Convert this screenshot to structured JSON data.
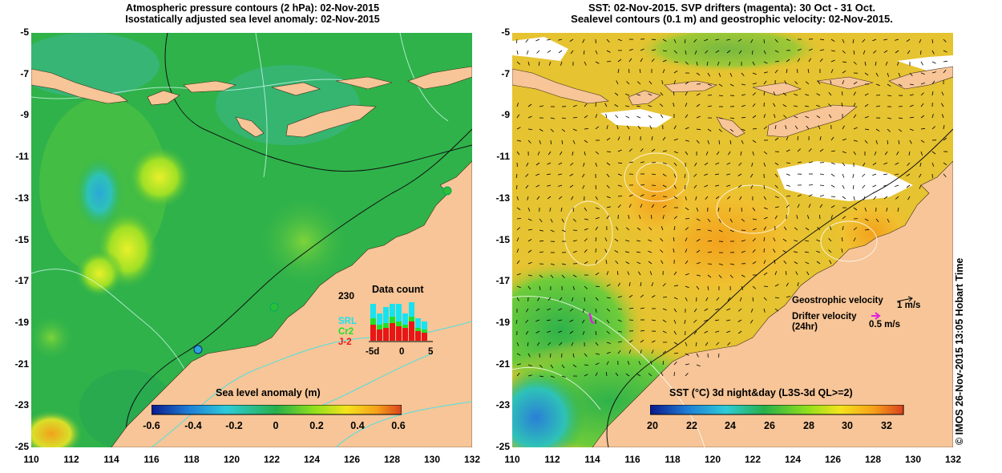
{
  "left_map": {
    "title_line1": "Atmospheric pressure contours (2 hPa): 02-Nov-2015",
    "title_line2": "Isostatically adjusted sea level anomaly: 02-Nov-2015",
    "colorbar": {
      "label": "Sea level anomaly (m)",
      "ticks": [
        "-0.6",
        "-0.4",
        "-0.2",
        "0",
        "0.2",
        "0.4",
        "0.6"
      ],
      "range": [
        -0.6,
        0.6
      ],
      "colors": [
        "#0a1a8c",
        "#1f7fd6",
        "#2ecbd8",
        "#28b04a",
        "#8fe01c",
        "#f4e41c",
        "#f6a21a",
        "#d9431d"
      ]
    },
    "data_count": {
      "title": "Data count",
      "max_label": "230",
      "x_labels": [
        "-5d",
        "0",
        "5"
      ],
      "series": [
        {
          "name": "SRL",
          "color": "#17e3f0"
        },
        {
          "name": "Cr2",
          "color": "#22e02a"
        },
        {
          "name": "J-2",
          "color": "#e81616"
        }
      ]
    }
  },
  "right_map": {
    "title_line1": "SST: 02-Nov-2015. SVP drifters (magenta): 30 Oct - 31 Oct.",
    "title_line2": "Sealevel contours (0.1 m) and geostrophic velocity: 02-Nov-2015.",
    "colorbar": {
      "label": "SST (°C) 3d night&day (L3S-3d QL>=2)",
      "ticks": [
        "20",
        "22",
        "24",
        "26",
        "28",
        "30",
        "32"
      ],
      "range": [
        20,
        33
      ],
      "colors": [
        "#0a1a8c",
        "#1f7fd6",
        "#2ecbd8",
        "#28b04a",
        "#8fe01c",
        "#f4e41c",
        "#f6a21a",
        "#d9431d"
      ]
    },
    "legend": {
      "geostrophic_label": "Geostrophic velocity",
      "geostrophic_scale": "1 m/s",
      "drifter_label_line1": "Drifter velocity",
      "drifter_label_line2": "(24hr)",
      "drifter_scale": "0.5 m/s"
    }
  },
  "axes": {
    "lon_ticks": [
      "110",
      "112",
      "114",
      "116",
      "118",
      "120",
      "122",
      "124",
      "126",
      "128",
      "130",
      "132"
    ],
    "lat_ticks": [
      "-5",
      "-7",
      "-9",
      "-11",
      "-13",
      "-15",
      "-17",
      "-19",
      "-21",
      "-23",
      "-25"
    ],
    "lon_range": [
      110,
      132
    ],
    "lat_range": [
      -25,
      -5
    ]
  },
  "credit": "© IMOS 26-Nov-2015 13:05 Hobart Time",
  "colors": {
    "land": "#f7c597",
    "ocean_left": "#2fb24a",
    "ocean_right": "#e6c330",
    "drifter": "#e020e0",
    "no_data": "#ffffff"
  }
}
